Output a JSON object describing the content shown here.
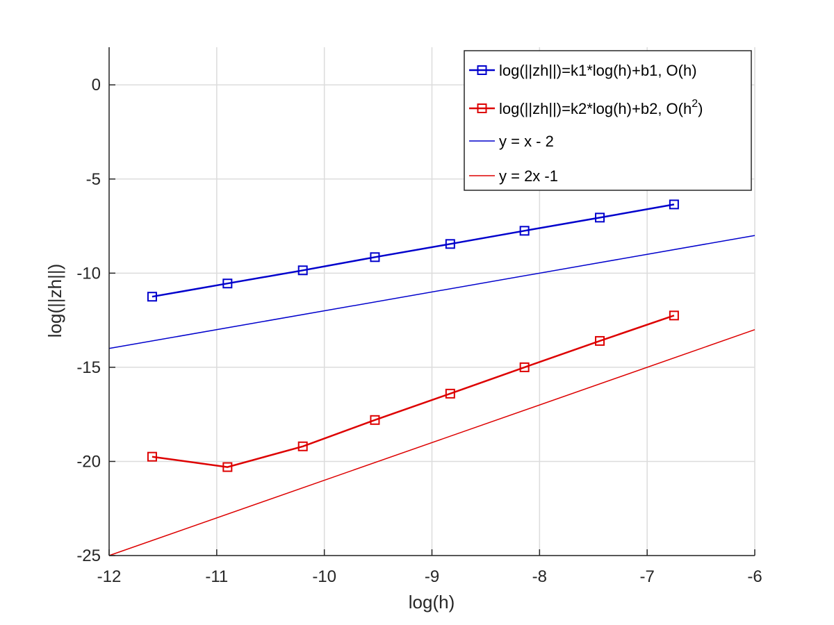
{
  "chart_data": {
    "type": "line",
    "xlabel": "log(h)",
    "ylabel": "log(||zh||)",
    "xlim": [
      -12,
      -6
    ],
    "ylim": [
      -25,
      2
    ],
    "xticks": [
      -12,
      -11,
      -10,
      -9,
      -8,
      -7,
      -6
    ],
    "yticks": [
      -25,
      -20,
      -15,
      -10,
      -5,
      0
    ],
    "grid": true,
    "legend_position": "top-right",
    "series": [
      {
        "name": "log(||zh||)=k1*log(h)+b1, O(h)",
        "legend_main": "log(||zh||)=k1*log(h)+b1, O(h)",
        "color": "#0000cc",
        "marker": "square",
        "x": [
          -11.6,
          -10.9,
          -10.2,
          -9.53,
          -8.83,
          -8.14,
          -7.44,
          -6.75
        ],
        "y": [
          -11.25,
          -10.55,
          -9.85,
          -9.15,
          -8.45,
          -7.75,
          -7.05,
          -6.35
        ]
      },
      {
        "name": "log(||zh||)=k2*log(h)+b2, O(h2)",
        "legend_main": "log(||zh||)=k2*log(h)+b2, O(h",
        "legend_sup": "2",
        "legend_tail": ")",
        "color": "#dd0000",
        "marker": "square",
        "x": [
          -11.6,
          -10.9,
          -10.2,
          -9.53,
          -8.83,
          -8.14,
          -7.44,
          -6.75
        ],
        "y": [
          -19.75,
          -20.3,
          -19.2,
          -17.8,
          -16.4,
          -15.0,
          -13.6,
          -12.25
        ]
      },
      {
        "name": "y = x - 2",
        "legend_main": "y = x - 2",
        "color": "#0000cc",
        "marker": "none",
        "x": [
          -12,
          -6
        ],
        "y": [
          -14,
          -8
        ]
      },
      {
        "name": "y = 2x -1",
        "legend_main": "y = 2x -1",
        "color": "#dd0000",
        "marker": "none",
        "x": [
          -12,
          -6
        ],
        "y": [
          -25,
          -13
        ]
      }
    ]
  }
}
